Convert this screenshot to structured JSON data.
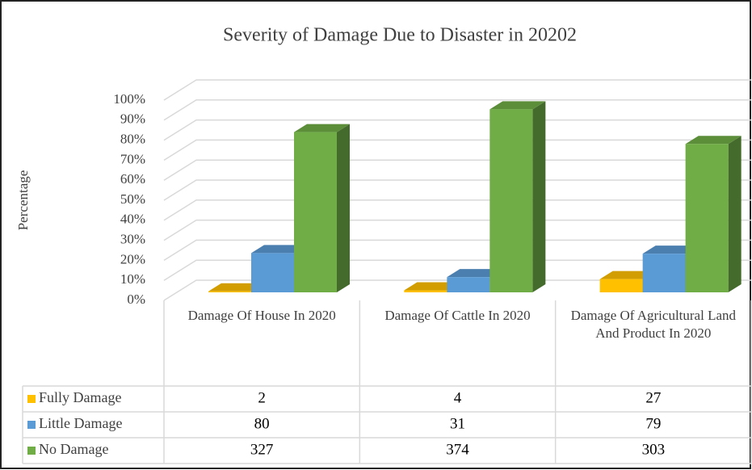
{
  "chart_data": {
    "type": "bar3d",
    "title": "Severity of Damage Due to Disaster in 20202",
    "y_label": "Percentage",
    "categories": [
      "Damage Of House In 2020",
      "Damage Of Cattle In 2020",
      "Damage Of Agricultural Land And Product In 2020"
    ],
    "series": [
      {
        "name": "Fully Damage",
        "color": "#ffc000",
        "values": [
          0.5,
          1,
          6.6
        ],
        "counts": [
          2,
          4,
          27
        ]
      },
      {
        "name": "Little Damage",
        "color": "#5b9bd5",
        "values": [
          19.6,
          7.6,
          19.3
        ],
        "counts": [
          80,
          31,
          79
        ]
      },
      {
        "name": "No Damage",
        "color": "#70ad47",
        "values": [
          80,
          91.4,
          74.1
        ],
        "counts": [
          327,
          374,
          303
        ]
      }
    ],
    "ylim": [
      0,
      100
    ],
    "yticks": [
      {
        "value": 0,
        "label": "0%"
      },
      {
        "value": 10,
        "label": "10%"
      },
      {
        "value": 20,
        "label": "20%"
      },
      {
        "value": 30,
        "label": "30%"
      },
      {
        "value": 40,
        "label": "40%"
      },
      {
        "value": 50,
        "label": "50%"
      },
      {
        "value": 60,
        "label": "60%"
      },
      {
        "value": 70,
        "label": "70%"
      },
      {
        "value": 80,
        "label": "80%"
      },
      {
        "value": 90,
        "label": "90%"
      },
      {
        "value": 100,
        "label": "100%"
      }
    ],
    "grid": true
  }
}
